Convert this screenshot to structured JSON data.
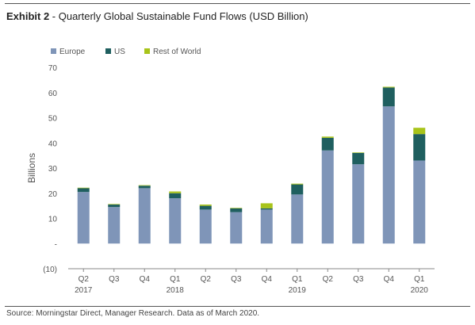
{
  "header": {
    "exhibit_label": "Exhibit 2",
    "title_text": " - Quarterly Global Sustainable Fund Flows (USD Billion)"
  },
  "footer": {
    "source": "Source: Morningstar Direct, Manager Research. Data as of March 2020."
  },
  "chart_data": {
    "type": "bar",
    "stacked": true,
    "title": "Quarterly Global Sustainable Fund Flows (USD Billion)",
    "ylabel": "Billions",
    "xlabel": "",
    "ylim": [
      -10,
      70
    ],
    "yticks": [
      -10,
      0,
      10,
      20,
      30,
      40,
      50,
      60,
      70
    ],
    "ytick_labels": [
      "(10)",
      "-",
      "10",
      "20",
      "30",
      "40",
      "50",
      "60",
      "70"
    ],
    "grid": false,
    "legend_position": "top-left",
    "categories": [
      "Q2",
      "Q3",
      "Q4",
      "Q1",
      "Q2",
      "Q3",
      "Q4",
      "Q1",
      "Q2",
      "Q3",
      "Q4",
      "Q1"
    ],
    "year_labels": [
      "2017",
      "",
      "",
      "2018",
      "",
      "",
      "",
      "2019",
      "",
      "",
      "",
      "2020"
    ],
    "series": [
      {
        "name": "Europe",
        "color": "#7f95b8",
        "values": [
          20.5,
          14.5,
          22,
          18,
          13.5,
          12.5,
          13.5,
          19.5,
          37,
          31.5,
          54.5,
          33
        ]
      },
      {
        "name": "US",
        "color": "#1f5f5f",
        "values": [
          1.5,
          1,
          1,
          2,
          1.5,
          1.5,
          0.5,
          4,
          5,
          4.5,
          7.5,
          10.5
        ]
      },
      {
        "name": "Rest of World",
        "color": "#a8c41a",
        "values": [
          0.2,
          0.2,
          0.2,
          0.7,
          0.5,
          0.2,
          2,
          0.3,
          0.5,
          0.2,
          0.3,
          2.5
        ]
      }
    ]
  }
}
